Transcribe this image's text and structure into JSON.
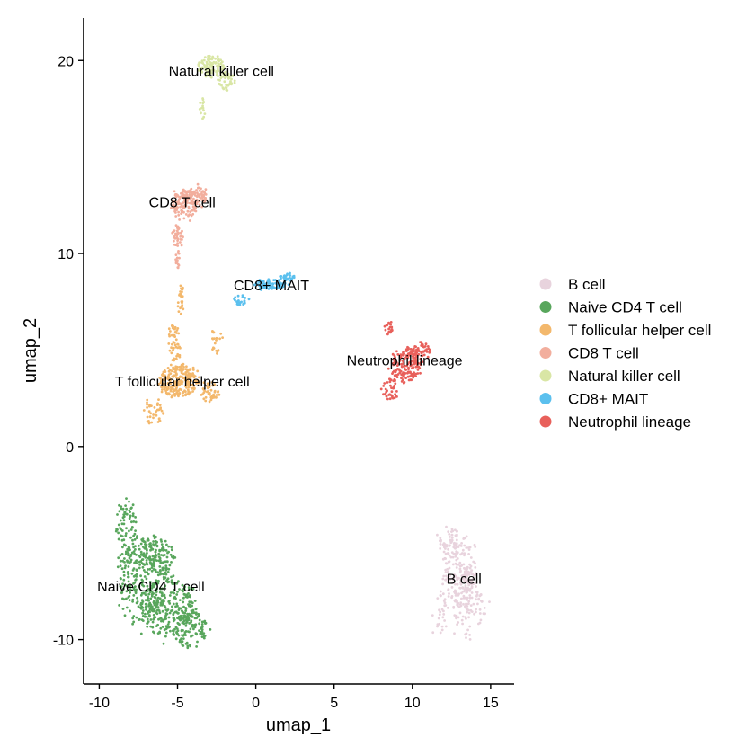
{
  "chart_data": {
    "type": "scatter",
    "xlabel": "umap_1",
    "ylabel": "umap_2",
    "xlim": [
      -11,
      16.5
    ],
    "ylim": [
      -12.3,
      22.2
    ],
    "xticks": [
      -10,
      -5,
      0,
      5,
      10,
      15
    ],
    "yticks": [
      -10,
      0,
      10,
      20
    ],
    "grid": false,
    "legend_position": "right",
    "series": [
      {
        "name": "B cell",
        "color": "#e8d3dd",
        "label_text": "B cell",
        "label_at": [
          13.3,
          -7.1
        ],
        "blobs": [
          [
            13.0,
            -6.2,
            1.2,
            1.9,
            160
          ],
          [
            13.6,
            -8.2,
            1.1,
            1.8,
            130
          ],
          [
            12.4,
            -4.8,
            0.9,
            0.7,
            40
          ],
          [
            11.8,
            -8.7,
            0.6,
            1.2,
            30
          ]
        ]
      },
      {
        "name": "Naive CD4 T cell",
        "color": "#58a65c",
        "label_text": "Naive CD4 T cell",
        "label_at": [
          -6.7,
          -7.5
        ],
        "blobs": [
          [
            -7.2,
            -7.0,
            1.8,
            2.2,
            300
          ],
          [
            -5.6,
            -8.4,
            1.9,
            1.6,
            220
          ],
          [
            -4.2,
            -9.4,
            1.2,
            1.0,
            110
          ],
          [
            -8.3,
            -4.0,
            0.7,
            1.5,
            70
          ],
          [
            -6.4,
            -5.6,
            1.3,
            1.0,
            90
          ]
        ]
      },
      {
        "name": "T follicular helper cell",
        "color": "#f3b86c",
        "label_text": "T follicular helper cell",
        "label_at": [
          -4.7,
          3.1
        ],
        "blobs": [
          [
            -4.9,
            3.4,
            1.3,
            0.9,
            240
          ],
          [
            -5.2,
            5.4,
            0.45,
            1.1,
            50
          ],
          [
            -6.5,
            1.8,
            0.7,
            0.7,
            40
          ],
          [
            -3.0,
            2.8,
            0.7,
            0.5,
            40
          ],
          [
            -4.8,
            7.5,
            0.2,
            1.0,
            25
          ],
          [
            -2.5,
            5.6,
            0.35,
            0.9,
            20
          ]
        ]
      },
      {
        "name": "CD8 T cell",
        "color": "#f2ae9d",
        "label_text": "CD8 T cell",
        "label_at": [
          -4.7,
          12.4
        ],
        "blobs": [
          [
            -4.5,
            12.6,
            0.9,
            0.8,
            150
          ],
          [
            -3.6,
            13.0,
            0.6,
            0.5,
            50
          ],
          [
            -5.0,
            10.9,
            0.35,
            0.6,
            40
          ],
          [
            -5.0,
            9.7,
            0.12,
            0.6,
            15
          ]
        ]
      },
      {
        "name": "Natural killer cell",
        "color": "#d9e6a5",
        "label_text": "Natural killer cell",
        "label_at": [
          -2.2,
          19.2
        ],
        "blobs": [
          [
            -2.9,
            19.7,
            0.9,
            0.6,
            100
          ],
          [
            -1.9,
            18.9,
            0.55,
            0.5,
            50
          ],
          [
            -3.4,
            17.5,
            0.2,
            0.6,
            15
          ]
        ]
      },
      {
        "name": "CD8+ MAIT",
        "color": "#5bc0ee",
        "label_text": "CD8+ MAIT",
        "label_at": [
          1.0,
          8.1
        ],
        "blobs": [
          [
            0.9,
            8.4,
            1.0,
            0.3,
            80
          ],
          [
            -0.9,
            7.6,
            0.5,
            0.3,
            25
          ],
          [
            2.0,
            8.8,
            0.5,
            0.2,
            25
          ]
        ]
      },
      {
        "name": "Neutrophil lineage",
        "color": "#e8605b",
        "label_text": "Neutrophil lineage",
        "label_at": [
          9.5,
          4.2
        ],
        "blobs": [
          [
            9.6,
            4.2,
            1.0,
            0.9,
            160
          ],
          [
            10.5,
            4.9,
            0.7,
            0.6,
            60
          ],
          [
            8.6,
            3.0,
            0.5,
            0.6,
            40
          ],
          [
            8.5,
            6.2,
            0.3,
            0.4,
            20
          ]
        ]
      }
    ]
  }
}
